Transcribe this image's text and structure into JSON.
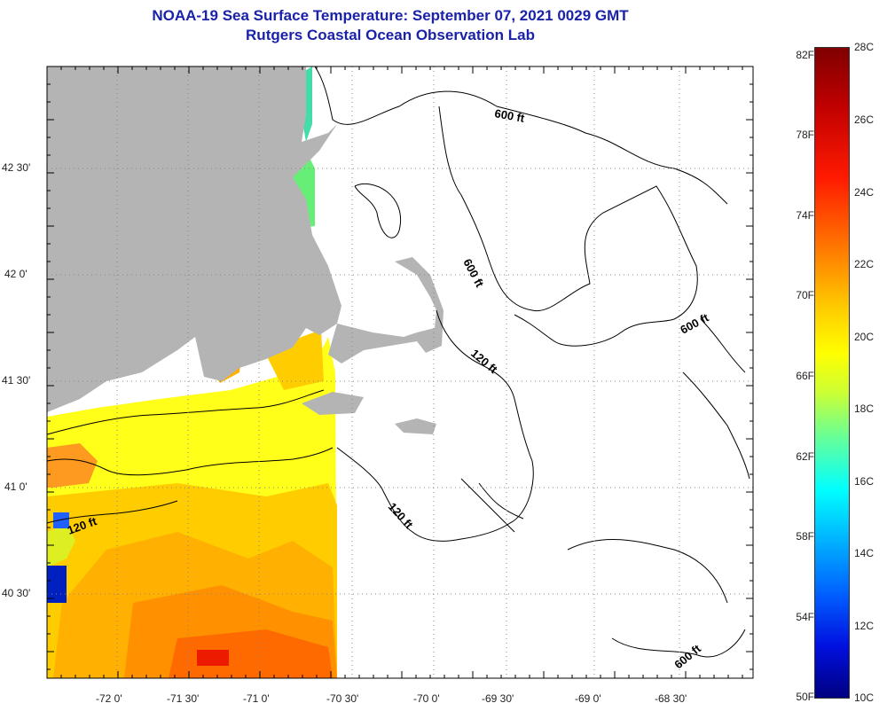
{
  "header": {
    "title": "NOAA-19 Sea Surface Temperature:  September 07, 2021 0029 GMT",
    "subtitle": "Rutgers Coastal Ocean Observation Lab"
  },
  "map": {
    "lon_labels": [
      "-72 0'",
      "-71 30'",
      "-71 0'",
      "-70 30'",
      "-70 0'",
      "-69 30'",
      "-69 0'",
      "-68 30'"
    ],
    "lat_labels": [
      "42 30'",
      "42 0'",
      "41 30'",
      "41 0'",
      "40 30'"
    ],
    "contour_labels": [
      "600 ft",
      "600 ft",
      "600 ft",
      "600 ft",
      "120 ft",
      "120 ft",
      "120 ft"
    ],
    "land_color": "#b4b4b4",
    "contour_color": "#000000"
  },
  "colorbar": {
    "fahrenheit_labels": [
      "82F",
      "78F",
      "74F",
      "70F",
      "66F",
      "62F",
      "58F",
      "54F",
      "50F"
    ],
    "celsius_labels": [
      "28C",
      "26C",
      "24C",
      "22C",
      "20C",
      "18C",
      "16C",
      "14C",
      "12C",
      "10C"
    ],
    "range_c": [
      10,
      28
    ],
    "range_f": [
      50,
      82
    ]
  }
}
